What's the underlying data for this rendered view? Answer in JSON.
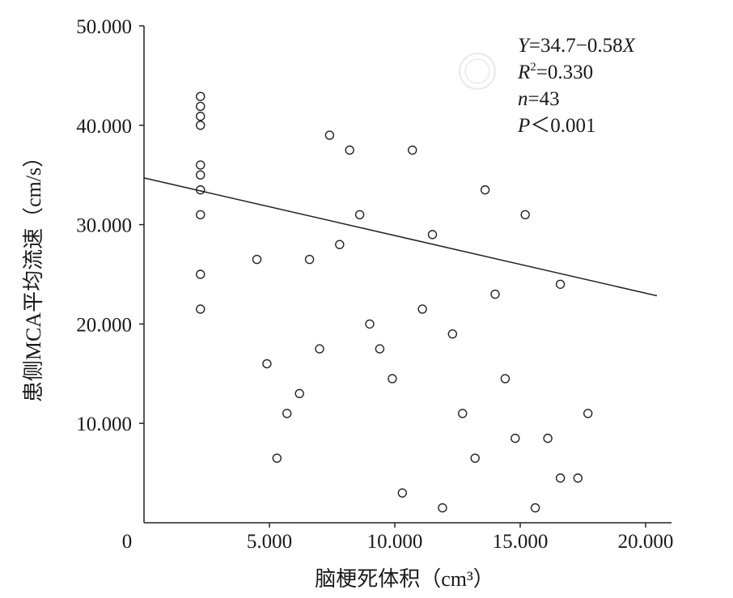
{
  "chart_data": {
    "type": "scatter",
    "xlabel": "脑梗死体积（cm³）",
    "ylabel": "患侧MCA平均流速（cm/s）",
    "xlim": [
      0,
      21
    ],
    "ylim": [
      0,
      50
    ],
    "x_ticks": [
      {
        "value": 0,
        "label": "0"
      },
      {
        "value": 5,
        "label": "5.000"
      },
      {
        "value": 10,
        "label": "10.000"
      },
      {
        "value": 15,
        "label": "15.000"
      },
      {
        "value": 20,
        "label": "20.000"
      }
    ],
    "y_ticks": [
      {
        "value": 10,
        "label": "10.000"
      },
      {
        "value": 20,
        "label": "20.000"
      },
      {
        "value": 30,
        "label": "30.000"
      },
      {
        "value": 40,
        "label": "40.000"
      },
      {
        "value": 50,
        "label": "50.000"
      }
    ],
    "grid": false,
    "points": [
      [
        2.25,
        42.9
      ],
      [
        2.25,
        41.9
      ],
      [
        2.25,
        40.9
      ],
      [
        2.25,
        40.0
      ],
      [
        2.25,
        36.0
      ],
      [
        2.25,
        35.0
      ],
      [
        2.25,
        33.5
      ],
      [
        2.25,
        31.0
      ],
      [
        2.25,
        25.0
      ],
      [
        2.25,
        21.5
      ],
      [
        4.5,
        26.5
      ],
      [
        4.9,
        16.0
      ],
      [
        5.3,
        6.5
      ],
      [
        5.7,
        11.0
      ],
      [
        6.2,
        13.0
      ],
      [
        6.6,
        26.5
      ],
      [
        7.0,
        17.5
      ],
      [
        7.4,
        39.0
      ],
      [
        7.8,
        28.0
      ],
      [
        8.2,
        37.5
      ],
      [
        8.6,
        31.0
      ],
      [
        9.0,
        20.0
      ],
      [
        9.4,
        17.5
      ],
      [
        9.9,
        14.5
      ],
      [
        10.3,
        3.0
      ],
      [
        10.7,
        37.5
      ],
      [
        11.1,
        21.5
      ],
      [
        11.5,
        29.0
      ],
      [
        11.9,
        1.5
      ],
      [
        12.3,
        19.0
      ],
      [
        12.7,
        11.0
      ],
      [
        13.2,
        6.5
      ],
      [
        13.6,
        33.5
      ],
      [
        14.0,
        23.0
      ],
      [
        14.4,
        14.5
      ],
      [
        14.8,
        8.5
      ],
      [
        15.2,
        31.0
      ],
      [
        15.6,
        1.5
      ],
      [
        16.1,
        8.5
      ],
      [
        16.6,
        24.0
      ],
      [
        16.6,
        4.5
      ],
      [
        17.3,
        4.5
      ],
      [
        17.7,
        11.0
      ]
    ],
    "regression": {
      "intercept": 34.7,
      "slope": -0.58,
      "x_range": [
        0,
        20.45
      ]
    },
    "annotations": [
      {
        "prefix": "Y",
        "text": "=34.7−0.58",
        "suffix": "X"
      },
      {
        "prefix": "R",
        "sup": "2",
        "text": "=0.330"
      },
      {
        "prefix": "n",
        "text": "=43"
      },
      {
        "prefix": "P",
        "text": "＜0.001"
      }
    ]
  }
}
